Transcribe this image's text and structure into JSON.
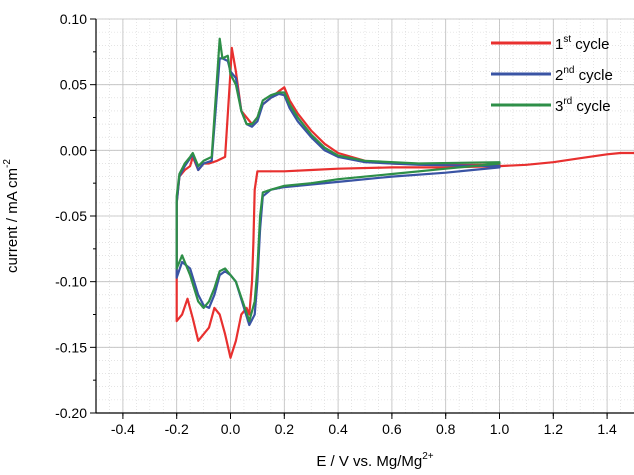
{
  "chart_data": {
    "type": "line",
    "title": "",
    "xlabel": {
      "main": "E / V vs. Mg/Mg",
      "sup": "2+"
    },
    "ylabel": {
      "main": "current / mA cm",
      "sup": "-2"
    },
    "xlim": [
      -0.5,
      1.5
    ],
    "ylim": [
      -0.2,
      0.1
    ],
    "x_ticks": [
      -0.4,
      -0.2,
      0.0,
      0.2,
      0.4,
      0.6,
      0.8,
      1.0,
      1.2,
      1.4
    ],
    "x_tick_labels": [
      "-0.4",
      "-0.2",
      "0.0",
      "0.2",
      "0.4",
      "0.6",
      "0.8",
      "1.0",
      "1.2",
      "1.4"
    ],
    "y_ticks": [
      -0.2,
      -0.15,
      -0.1,
      -0.05,
      0.0,
      0.05,
      0.1
    ],
    "y_tick_labels": [
      "-0.20",
      "-0.15",
      "-0.10",
      "-0.05",
      "0.00",
      "0.05",
      "0.10"
    ],
    "grid": true,
    "legend_position": "top-right",
    "series": [
      {
        "label_main": "1",
        "label_sup": "st",
        "label_rest": " cycle",
        "color": "#e8302f",
        "points": [
          [
            1.5,
            -0.002
          ],
          [
            1.45,
            -0.002
          ],
          [
            1.4,
            -0.003
          ],
          [
            1.3,
            -0.006
          ],
          [
            1.2,
            -0.009
          ],
          [
            1.1,
            -0.011
          ],
          [
            1.0,
            -0.012
          ],
          [
            0.8,
            -0.013
          ],
          [
            0.6,
            -0.013
          ],
          [
            0.4,
            -0.014
          ],
          [
            0.3,
            -0.015
          ],
          [
            0.2,
            -0.016
          ],
          [
            0.1,
            -0.016
          ],
          [
            0.09,
            -0.03
          ],
          [
            0.085,
            -0.07
          ],
          [
            0.08,
            -0.1
          ],
          [
            0.07,
            -0.125
          ],
          [
            0.06,
            -0.12
          ],
          [
            0.04,
            -0.125
          ],
          [
            0.02,
            -0.145
          ],
          [
            0.0,
            -0.158
          ],
          [
            -0.02,
            -0.14
          ],
          [
            -0.04,
            -0.125
          ],
          [
            -0.06,
            -0.12
          ],
          [
            -0.08,
            -0.135
          ],
          [
            -0.1,
            -0.14
          ],
          [
            -0.12,
            -0.145
          ],
          [
            -0.14,
            -0.128
          ],
          [
            -0.16,
            -0.113
          ],
          [
            -0.18,
            -0.125
          ],
          [
            -0.2,
            -0.13
          ],
          [
            -0.2,
            -0.04
          ],
          [
            -0.19,
            -0.02
          ],
          [
            -0.17,
            -0.015
          ],
          [
            -0.15,
            -0.012
          ],
          [
            -0.14,
            -0.005
          ],
          [
            -0.12,
            -0.015
          ],
          [
            -0.1,
            -0.01
          ],
          [
            -0.08,
            -0.01
          ],
          [
            -0.05,
            -0.008
          ],
          [
            -0.02,
            -0.005
          ],
          [
            0.0,
            0.06
          ],
          [
            0.005,
            0.078
          ],
          [
            0.02,
            0.06
          ],
          [
            0.04,
            0.03
          ],
          [
            0.06,
            0.025
          ],
          [
            0.08,
            0.02
          ],
          [
            0.1,
            0.025
          ],
          [
            0.12,
            0.035
          ],
          [
            0.15,
            0.04
          ],
          [
            0.18,
            0.045
          ],
          [
            0.2,
            0.048
          ],
          [
            0.22,
            0.038
          ],
          [
            0.25,
            0.028
          ],
          [
            0.3,
            0.015
          ],
          [
            0.35,
            0.005
          ],
          [
            0.4,
            -0.002
          ],
          [
            0.5,
            -0.008
          ],
          [
            0.6,
            -0.01
          ],
          [
            0.8,
            -0.011
          ],
          [
            1.0,
            -0.011
          ]
        ]
      },
      {
        "label_main": "2",
        "label_sup": "nd",
        "label_rest": " cycle",
        "color": "#3a54a4",
        "points": [
          [
            1.0,
            -0.013
          ],
          [
            0.9,
            -0.015
          ],
          [
            0.8,
            -0.017
          ],
          [
            0.6,
            -0.02
          ],
          [
            0.4,
            -0.024
          ],
          [
            0.3,
            -0.026
          ],
          [
            0.2,
            -0.028
          ],
          [
            0.15,
            -0.03
          ],
          [
            0.12,
            -0.035
          ],
          [
            0.11,
            -0.06
          ],
          [
            0.1,
            -0.1
          ],
          [
            0.09,
            -0.125
          ],
          [
            0.07,
            -0.133
          ],
          [
            0.05,
            -0.12
          ],
          [
            0.02,
            -0.1
          ],
          [
            0.0,
            -0.095
          ],
          [
            -0.02,
            -0.092
          ],
          [
            -0.04,
            -0.095
          ],
          [
            -0.06,
            -0.11
          ],
          [
            -0.08,
            -0.12
          ],
          [
            -0.1,
            -0.118
          ],
          [
            -0.12,
            -0.11
          ],
          [
            -0.15,
            -0.09
          ],
          [
            -0.18,
            -0.085
          ],
          [
            -0.2,
            -0.097
          ],
          [
            -0.2,
            -0.04
          ],
          [
            -0.19,
            -0.02
          ],
          [
            -0.17,
            -0.012
          ],
          [
            -0.15,
            -0.006
          ],
          [
            -0.14,
            -0.003
          ],
          [
            -0.12,
            -0.015
          ],
          [
            -0.1,
            -0.01
          ],
          [
            -0.07,
            -0.008
          ],
          [
            -0.04,
            0.07
          ],
          [
            -0.03,
            0.07
          ],
          [
            -0.01,
            0.068
          ],
          [
            0.0,
            0.06
          ],
          [
            0.02,
            0.055
          ],
          [
            0.04,
            0.03
          ],
          [
            0.06,
            0.02
          ],
          [
            0.08,
            0.018
          ],
          [
            0.1,
            0.022
          ],
          [
            0.12,
            0.035
          ],
          [
            0.15,
            0.04
          ],
          [
            0.18,
            0.043
          ],
          [
            0.2,
            0.042
          ],
          [
            0.22,
            0.032
          ],
          [
            0.25,
            0.022
          ],
          [
            0.3,
            0.01
          ],
          [
            0.35,
            0.0
          ],
          [
            0.4,
            -0.005
          ],
          [
            0.5,
            -0.009
          ],
          [
            0.7,
            -0.011
          ],
          [
            1.0,
            -0.012
          ]
        ]
      },
      {
        "label_main": "3",
        "label_sup": "rd",
        "label_rest": " cycle",
        "color": "#2e8f48",
        "points": [
          [
            1.0,
            -0.01
          ],
          [
            0.9,
            -0.012
          ],
          [
            0.8,
            -0.014
          ],
          [
            0.6,
            -0.018
          ],
          [
            0.4,
            -0.022
          ],
          [
            0.3,
            -0.025
          ],
          [
            0.2,
            -0.027
          ],
          [
            0.15,
            -0.03
          ],
          [
            0.12,
            -0.032
          ],
          [
            0.11,
            -0.05
          ],
          [
            0.1,
            -0.09
          ],
          [
            0.09,
            -0.115
          ],
          [
            0.07,
            -0.13
          ],
          [
            0.05,
            -0.118
          ],
          [
            0.02,
            -0.1
          ],
          [
            0.0,
            -0.095
          ],
          [
            -0.02,
            -0.09
          ],
          [
            -0.04,
            -0.092
          ],
          [
            -0.06,
            -0.105
          ],
          [
            -0.08,
            -0.115
          ],
          [
            -0.1,
            -0.12
          ],
          [
            -0.12,
            -0.115
          ],
          [
            -0.15,
            -0.095
          ],
          [
            -0.18,
            -0.08
          ],
          [
            -0.2,
            -0.09
          ],
          [
            -0.2,
            -0.035
          ],
          [
            -0.19,
            -0.018
          ],
          [
            -0.17,
            -0.01
          ],
          [
            -0.15,
            -0.005
          ],
          [
            -0.14,
            -0.002
          ],
          [
            -0.12,
            -0.012
          ],
          [
            -0.1,
            -0.008
          ],
          [
            -0.07,
            -0.005
          ],
          [
            -0.04,
            0.085
          ],
          [
            -0.03,
            0.07
          ],
          [
            -0.01,
            0.072
          ],
          [
            0.0,
            0.058
          ],
          [
            0.02,
            0.05
          ],
          [
            0.04,
            0.03
          ],
          [
            0.06,
            0.02
          ],
          [
            0.08,
            0.02
          ],
          [
            0.1,
            0.025
          ],
          [
            0.12,
            0.038
          ],
          [
            0.15,
            0.042
          ],
          [
            0.18,
            0.044
          ],
          [
            0.2,
            0.044
          ],
          [
            0.22,
            0.035
          ],
          [
            0.25,
            0.025
          ],
          [
            0.3,
            0.012
          ],
          [
            0.35,
            0.002
          ],
          [
            0.4,
            -0.004
          ],
          [
            0.5,
            -0.008
          ],
          [
            0.7,
            -0.01
          ],
          [
            1.0,
            -0.009
          ]
        ]
      }
    ]
  }
}
